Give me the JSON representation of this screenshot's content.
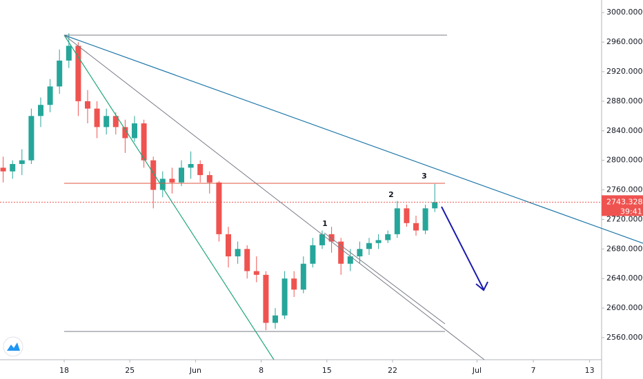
{
  "chart_data": {
    "type": "candlestick",
    "x": [
      "05-11",
      "05-12",
      "05-13",
      "05-14",
      "05-15",
      "05-16",
      "05-17",
      "05-18",
      "05-19",
      "05-20",
      "05-21",
      "05-22",
      "05-23",
      "05-24",
      "05-25",
      "05-26",
      "05-27",
      "05-28",
      "05-29",
      "05-30",
      "05-31",
      "06-01",
      "06-02",
      "06-03",
      "06-04",
      "06-05",
      "06-06",
      "06-07",
      "06-08",
      "06-09",
      "06-10",
      "06-11",
      "06-12",
      "06-13",
      "06-14",
      "06-15",
      "06-16",
      "06-17",
      "06-18",
      "06-19",
      "06-20",
      "06-21",
      "06-22",
      "06-23",
      "06-24",
      "06-25",
      "06-26"
    ],
    "open": [
      2790,
      2785,
      2795,
      2800,
      2860,
      2875,
      2900,
      2935,
      2955,
      2880,
      2870,
      2845,
      2860,
      2845,
      2830,
      2850,
      2800,
      2760,
      2775,
      2770,
      2790,
      2795,
      2780,
      2770,
      2700,
      2670,
      2680,
      2650,
      2645,
      2580,
      2590,
      2640,
      2625,
      2660,
      2685,
      2700,
      2690,
      2660,
      2670,
      2680,
      2688,
      2692,
      2700,
      2735,
      2715,
      2705,
      2735
    ],
    "high": [
      2805,
      2800,
      2815,
      2870,
      2885,
      2910,
      2950,
      2972,
      2960,
      2895,
      2880,
      2870,
      2865,
      2855,
      2860,
      2855,
      2805,
      2785,
      2790,
      2800,
      2812,
      2800,
      2785,
      2772,
      2710,
      2690,
      2685,
      2670,
      2650,
      2600,
      2650,
      2650,
      2670,
      2695,
      2705,
      2710,
      2695,
      2680,
      2690,
      2695,
      2700,
      2705,
      2745,
      2740,
      2725,
      2740,
      2768
    ],
    "low": [
      2770,
      2775,
      2780,
      2795,
      2845,
      2865,
      2890,
      2925,
      2860,
      2850,
      2830,
      2835,
      2835,
      2810,
      2825,
      2790,
      2735,
      2750,
      2755,
      2765,
      2775,
      2770,
      2755,
      2690,
      2655,
      2660,
      2640,
      2635,
      2570,
      2572,
      2585,
      2615,
      2620,
      2655,
      2680,
      2675,
      2645,
      2650,
      2660,
      2672,
      2680,
      2688,
      2695,
      2710,
      2698,
      2700,
      2730
    ],
    "close": [
      2785,
      2795,
      2800,
      2860,
      2875,
      2900,
      2935,
      2955,
      2880,
      2870,
      2845,
      2860,
      2845,
      2830,
      2850,
      2800,
      2760,
      2775,
      2770,
      2790,
      2795,
      2780,
      2770,
      2700,
      2670,
      2680,
      2650,
      2645,
      2580,
      2590,
      2640,
      2625,
      2660,
      2685,
      2700,
      2690,
      2660,
      2670,
      2680,
      2688,
      2692,
      2700,
      2735,
      2715,
      2705,
      2735,
      2743.328
    ],
    "up_color": "#26a69a",
    "down_color": "#ef5350",
    "ylim": [
      2504,
      3017
    ],
    "yticks": [
      {
        "value": 2560,
        "label": "2560.000"
      },
      {
        "value": 2600,
        "label": "2600.000"
      },
      {
        "value": 2640,
        "label": "2640.000"
      },
      {
        "value": 2680,
        "label": "2680.000"
      },
      {
        "value": 2720,
        "label": "2720.000"
      },
      {
        "value": 2760,
        "label": "2760.000"
      },
      {
        "value": 2800,
        "label": "2800.000"
      },
      {
        "value": 2840,
        "label": "2840.000"
      },
      {
        "value": 2880,
        "label": "2880.000"
      },
      {
        "value": 2920,
        "label": "2920.000"
      },
      {
        "value": 2960,
        "label": "2960.000"
      },
      {
        "value": 3000,
        "label": "3000.000"
      }
    ],
    "xticks": [
      {
        "value": "05-18",
        "label": "18"
      },
      {
        "value": "05-25",
        "label": "25"
      },
      {
        "value": "06-01",
        "label": "Jun"
      },
      {
        "value": "06-08",
        "label": "8"
      },
      {
        "value": "06-15",
        "label": "15"
      },
      {
        "value": "06-22",
        "label": "22"
      },
      {
        "value": "07-01",
        "label": "Jul"
      },
      {
        "value": "07-07",
        "label": "7"
      },
      {
        "value": "07-13",
        "label": "13"
      }
    ],
    "last_price": 2743.328,
    "countdown": "39:41",
    "annotations": [
      "1",
      "2",
      "3"
    ]
  }
}
